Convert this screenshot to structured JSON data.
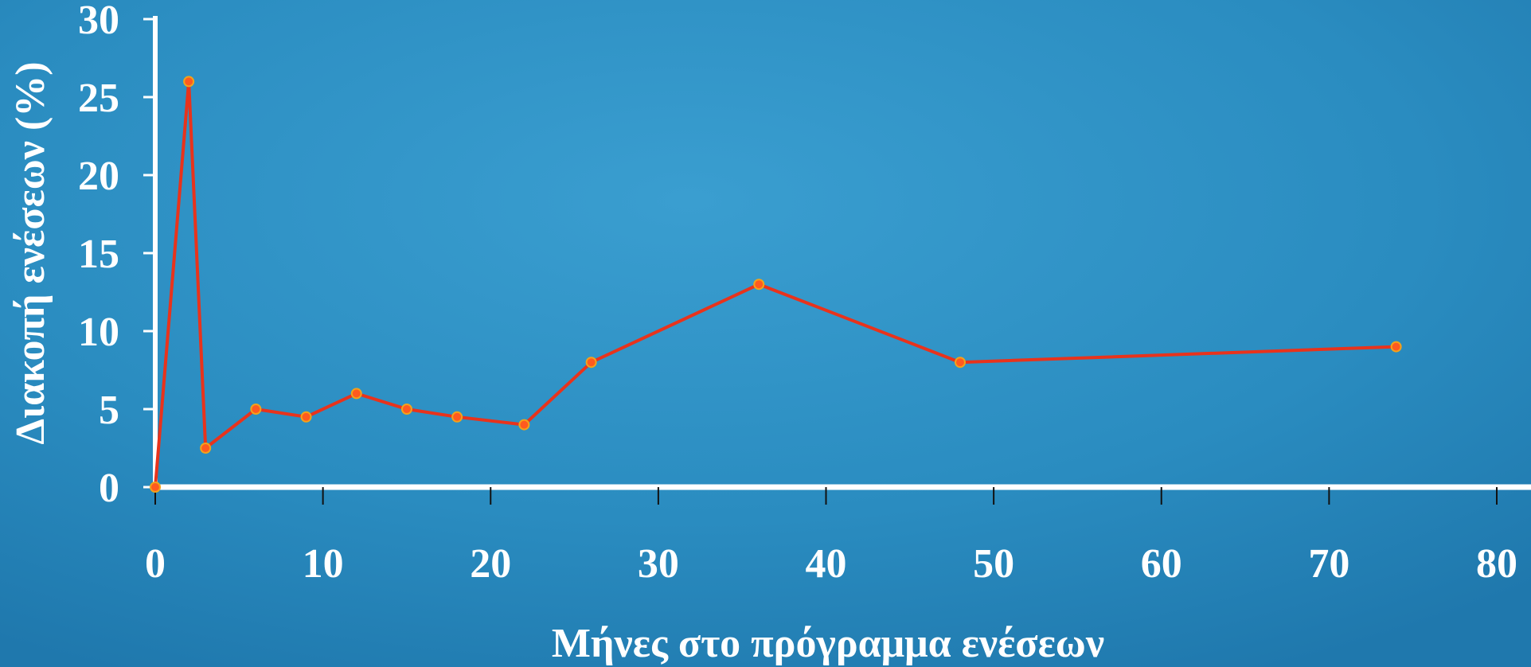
{
  "chart_data": {
    "type": "line",
    "title": "",
    "xlabel": "Μήνες στο πρόγραμμα ενέσεων",
    "ylabel": "Διακοπή ενέσεων (%)",
    "xlim": [
      0,
      80
    ],
    "ylim": [
      0,
      30
    ],
    "xticks": [
      0,
      10,
      20,
      30,
      40,
      50,
      60,
      70,
      80
    ],
    "yticks": [
      0,
      5,
      10,
      15,
      20,
      25,
      30
    ],
    "x": [
      0,
      2,
      3,
      6,
      9,
      12,
      15,
      18,
      22,
      26,
      36,
      48,
      74
    ],
    "y": [
      0,
      26,
      2.5,
      5,
      4.5,
      6,
      5,
      4.5,
      4,
      8,
      13,
      8,
      9
    ],
    "grid": false,
    "legend": "none",
    "colors": {
      "line": "#e8331c",
      "marker": "#ff5a1f",
      "axis": "#ffffff",
      "background": "#2b8fc2"
    }
  }
}
